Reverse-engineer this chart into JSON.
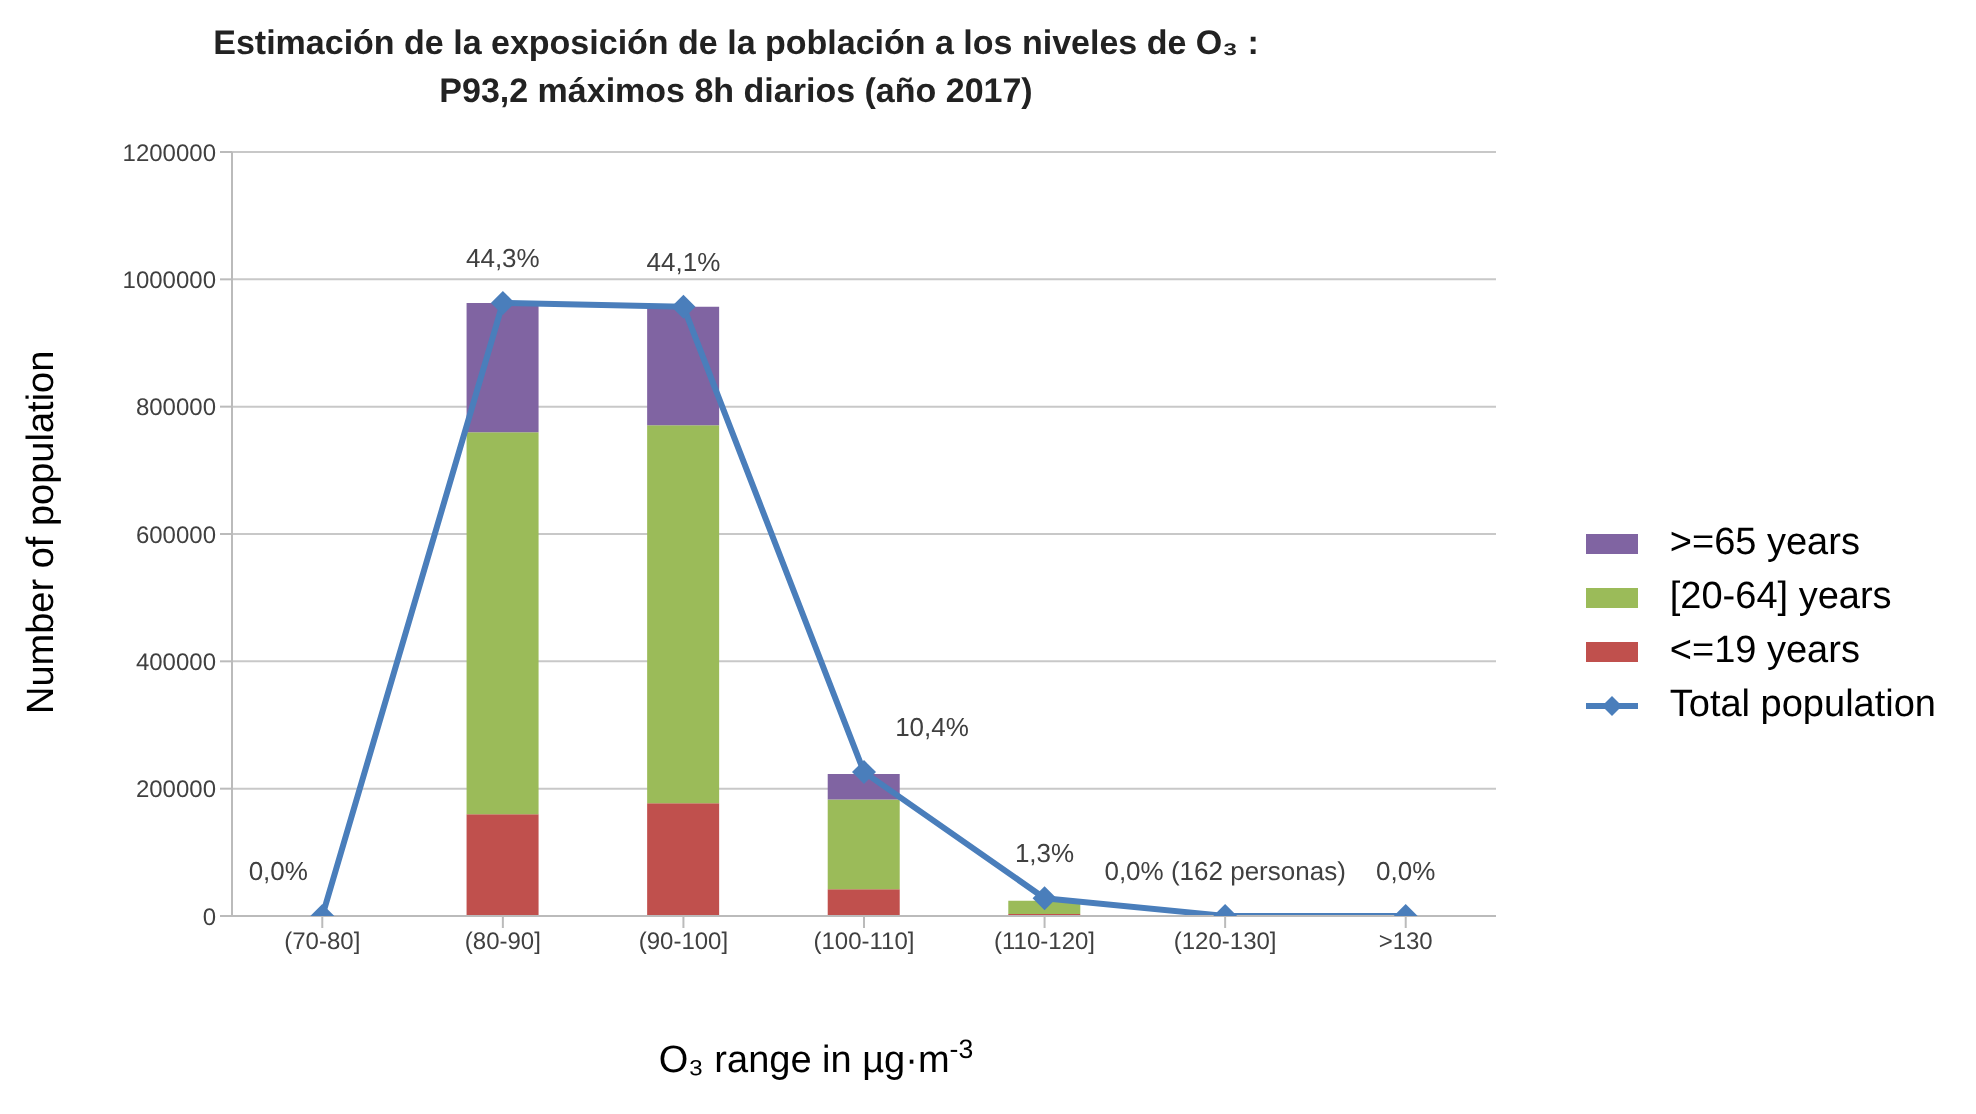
{
  "chart_data": {
    "type": "bar",
    "stacked": true,
    "title": "Estimación de la exposición de la población a los niveles de O₃ :",
    "subtitle": "P93,2 máximos 8h diarios (año 2017)",
    "xlabel": "O₃ range in µg·m$^{-3}$",
    "ylabel": "Number of population",
    "categories": [
      "(70-80]",
      "(80-90]",
      "(90-100]",
      "(100-110]",
      "(110-120]",
      "(120-130]",
      ">130"
    ],
    "series": [
      {
        "name": "<=19 years",
        "color": "#c0504d",
        "values": [
          0,
          160000,
          177000,
          42000,
          3000,
          0,
          0
        ]
      },
      {
        "name": "[20-64] years",
        "color": "#9bbb59",
        "values": [
          0,
          600000,
          594000,
          141000,
          21000,
          0,
          0
        ]
      },
      {
        "name": ">=65 years",
        "color": "#8064a2",
        "values": [
          0,
          203000,
          186000,
          40000,
          null,
          0,
          0
        ]
      },
      {
        "name": "Total population",
        "type": "line",
        "color": "#4a7ebb",
        "values": [
          0,
          963000,
          957000,
          226000,
          28000,
          162,
          0
        ]
      }
    ],
    "annotations": [
      {
        "text": "0,0%",
        "x": "(70-80]",
        "y": 0
      },
      {
        "text": "44,3%",
        "x": "(80-90]",
        "y": 963000
      },
      {
        "text": "44,1%",
        "x": "(90-100]",
        "y": 957000
      },
      {
        "text": "10,4%",
        "x": "(100-110]",
        "y": 226000
      },
      {
        "text": "1,3%",
        "x": "(110-120]",
        "y": 28000
      },
      {
        "text": "0,0% (162 personas)",
        "x": "(120-130]",
        "y": 162
      },
      {
        "text": "0,0%",
        "x": ">130",
        "y": 0
      }
    ],
    "ylim": [
      0,
      1200000
    ],
    "yticks": [
      0,
      200000,
      400000,
      600000,
      800000,
      1000000,
      1200000
    ],
    "grid": "y",
    "legend": "right",
    "marker": "diamond"
  }
}
